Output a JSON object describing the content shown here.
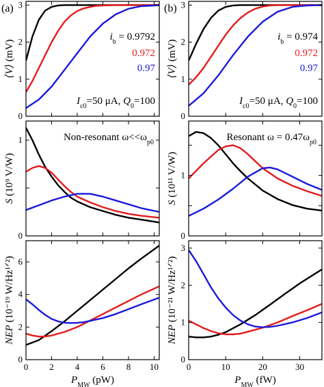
{
  "chart_data": [
    {
      "panel": "(a)",
      "row": 0,
      "col": 0,
      "type": "line",
      "ylabel_main": "⟨V⟩",
      "ylabel_unit": " (mV)",
      "xlim": [
        0,
        10.4
      ],
      "ylim": [
        0,
        3.1
      ],
      "yticks": [
        0,
        1,
        2,
        3
      ],
      "yticklabels": [
        "0",
        "1",
        "2",
        "3"
      ],
      "xticks": [
        0,
        2,
        4,
        6,
        8,
        10
      ],
      "annotations": {
        "ib": {
          "lines": [
            "i_b = 0.9792",
            "0.972",
            "0.97"
          ],
          "colors": [
            "#000000",
            "#e41a1c",
            "#1a1adb"
          ]
        },
        "params": "I_c0=50 μA, Q_0=100"
      },
      "series": [
        {
          "color": "#000000",
          "x": [
            0,
            0.5,
            1,
            1.5,
            2,
            2.5,
            3,
            3.5,
            4,
            5,
            6,
            10.4
          ],
          "y": [
            1.5,
            2.15,
            2.6,
            2.85,
            2.95,
            2.99,
            3.0,
            3.0,
            3.0,
            3.0,
            3.0,
            3.0
          ]
        },
        {
          "color": "#e41a1c",
          "x": [
            0,
            0.5,
            1,
            1.5,
            2,
            2.5,
            3,
            3.5,
            4,
            4.5,
            5,
            5.5,
            6,
            7,
            8,
            10.4
          ],
          "y": [
            0.65,
            0.95,
            1.3,
            1.65,
            2.0,
            2.3,
            2.55,
            2.72,
            2.84,
            2.91,
            2.95,
            2.98,
            2.99,
            3.0,
            3.0,
            3.0
          ]
        },
        {
          "color": "#1a1adb",
          "x": [
            0,
            1,
            2,
            3,
            4,
            5,
            6,
            7,
            8,
            9,
            10,
            10.4
          ],
          "y": [
            0.22,
            0.45,
            0.8,
            1.25,
            1.7,
            2.15,
            2.5,
            2.75,
            2.9,
            2.97,
            2.99,
            3.0
          ]
        }
      ]
    },
    {
      "panel": "(b)",
      "row": 0,
      "col": 1,
      "type": "line",
      "ylabel_main": "⟨V⟩",
      "ylabel_unit": " (mV)",
      "xlim": [
        0,
        36
      ],
      "ylim": [
        0,
        3.1
      ],
      "yticks": [
        0,
        1,
        2,
        3
      ],
      "yticklabels": [
        "0",
        "1",
        "2",
        "3"
      ],
      "xticks": [
        0,
        10,
        20,
        30
      ],
      "annotations": {
        "ib": {
          "lines": [
            "i_b = 0.974",
            "0.972",
            "0.97"
          ],
          "colors": [
            "#000000",
            "#e41a1c",
            "#1a1adb"
          ]
        },
        "params": "I_c0=50 μA, Q_0=100"
      },
      "series": [
        {
          "color": "#000000",
          "x": [
            0,
            2,
            4,
            6,
            8,
            10,
            12,
            14,
            16,
            18,
            20,
            36
          ],
          "y": [
            1.5,
            1.95,
            2.35,
            2.65,
            2.85,
            2.95,
            2.99,
            3.0,
            3.0,
            3.0,
            3.0,
            3.0
          ]
        },
        {
          "color": "#e41a1c",
          "x": [
            0,
            2,
            4,
            6,
            8,
            10,
            12,
            14,
            16,
            18,
            20,
            22,
            24,
            26,
            28,
            36
          ],
          "y": [
            0.85,
            1.05,
            1.3,
            1.6,
            1.9,
            2.2,
            2.45,
            2.65,
            2.8,
            2.9,
            2.96,
            2.99,
            3.0,
            3.0,
            3.0,
            3.0
          ]
        },
        {
          "color": "#1a1adb",
          "x": [
            0,
            4,
            8,
            12,
            16,
            20,
            24,
            28,
            32,
            36
          ],
          "y": [
            0.28,
            0.62,
            1.1,
            1.65,
            2.15,
            2.55,
            2.82,
            2.95,
            2.99,
            3.0
          ]
        }
      ]
    },
    {
      "panel": "",
      "row": 1,
      "col": 0,
      "type": "line",
      "ylabel_main": "S",
      "ylabel_unit": " (10⁹ V/W)",
      "xlim": [
        0,
        10.4
      ],
      "ylim": [
        0,
        1.2
      ],
      "yticks": [
        0,
        0.5,
        1.0
      ],
      "yticklabels": [
        "0",
        "",
        "1"
      ],
      "xticks": [
        0,
        2,
        4,
        6,
        8,
        10
      ],
      "annotations": {
        "title": "Non-resonant ω<<ω_p0"
      },
      "series": [
        {
          "color": "#000000",
          "x": [
            0,
            0.5,
            1,
            1.5,
            2,
            2.5,
            3,
            3.5,
            4,
            5,
            6,
            7,
            8,
            9,
            10.4
          ],
          "y": [
            1.13,
            1.0,
            0.85,
            0.72,
            0.62,
            0.53,
            0.46,
            0.4,
            0.36,
            0.3,
            0.26,
            0.22,
            0.19,
            0.17,
            0.14
          ]
        },
        {
          "color": "#e41a1c",
          "x": [
            0,
            0.5,
            1,
            1.5,
            2,
            2.5,
            3,
            3.5,
            4,
            5,
            6,
            7,
            8,
            9,
            10.4
          ],
          "y": [
            0.67,
            0.71,
            0.73,
            0.71,
            0.66,
            0.59,
            0.52,
            0.46,
            0.41,
            0.35,
            0.3,
            0.26,
            0.23,
            0.21,
            0.19
          ]
        },
        {
          "color": "#1a1adb",
          "x": [
            0,
            1,
            2,
            3,
            4,
            4.5,
            5,
            6,
            7,
            8,
            9,
            10.4
          ],
          "y": [
            0.27,
            0.32,
            0.37,
            0.41,
            0.44,
            0.44,
            0.44,
            0.41,
            0.37,
            0.33,
            0.29,
            0.25
          ]
        }
      ]
    },
    {
      "panel": "",
      "row": 1,
      "col": 1,
      "type": "line",
      "ylabel_main": "S",
      "ylabel_unit": " (10¹¹ V/W)",
      "xlim": [
        0,
        36
      ],
      "ylim": [
        0,
        1.9
      ],
      "yticks": [
        0,
        0.5,
        1.0,
        1.5
      ],
      "yticklabels": [
        "0",
        "",
        "1",
        ""
      ],
      "xticks": [
        0,
        10,
        20,
        30
      ],
      "annotations": {
        "title": "Resonant ω = 0.47ω_p0"
      },
      "series": [
        {
          "color": "#000000",
          "x": [
            0,
            2,
            4,
            6,
            8,
            10,
            12,
            14,
            16,
            20,
            24,
            28,
            32,
            36
          ],
          "y": [
            1.65,
            1.72,
            1.7,
            1.62,
            1.5,
            1.35,
            1.2,
            1.07,
            0.95,
            0.75,
            0.61,
            0.51,
            0.45,
            0.42
          ]
        },
        {
          "color": "#e41a1c",
          "x": [
            0,
            4,
            8,
            10,
            12,
            14,
            16,
            20,
            24,
            28,
            32,
            36
          ],
          "y": [
            0.95,
            1.2,
            1.42,
            1.48,
            1.5,
            1.45,
            1.35,
            1.12,
            0.95,
            0.83,
            0.74,
            0.66
          ]
        },
        {
          "color": "#1a1adb",
          "x": [
            0,
            4,
            8,
            12,
            16,
            20,
            22,
            24,
            28,
            32,
            36
          ],
          "y": [
            0.33,
            0.45,
            0.6,
            0.78,
            0.98,
            1.12,
            1.13,
            1.1,
            0.98,
            0.86,
            0.76
          ]
        }
      ]
    },
    {
      "panel": "",
      "row": 2,
      "col": 0,
      "type": "line",
      "ylabel_main": "NEP",
      "ylabel_unit": " (10⁻¹⁹ W/Hz¹ᐟ²)",
      "xlabel_main": "P",
      "xlabel_sub": "MW",
      "xlabel_unit": " (pW)",
      "xlim": [
        0,
        10.4
      ],
      "ylim": [
        0,
        7.3
      ],
      "yticks": [
        0,
        2,
        4,
        6
      ],
      "yticklabels": [
        "0",
        "2",
        "4",
        "6"
      ],
      "xticks": [
        0,
        2,
        4,
        6,
        8,
        10
      ],
      "xticklabels": [
        "0",
        "2",
        "4",
        "6",
        "8",
        "10"
      ],
      "series": [
        {
          "color": "#000000",
          "x": [
            0,
            1,
            2,
            3,
            4,
            5,
            6,
            7,
            8,
            9,
            10.4
          ],
          "y": [
            0.9,
            1.2,
            1.75,
            2.35,
            3.0,
            3.65,
            4.3,
            4.95,
            5.6,
            6.2,
            7.0
          ]
        },
        {
          "color": "#e41a1c",
          "x": [
            0,
            0.5,
            1,
            1.5,
            2,
            3,
            4,
            5,
            6,
            7,
            8,
            9,
            10.4
          ],
          "y": [
            1.6,
            1.48,
            1.42,
            1.42,
            1.48,
            1.7,
            2.0,
            2.4,
            2.8,
            3.2,
            3.6,
            4.0,
            4.5
          ]
        },
        {
          "color": "#1a1adb",
          "x": [
            0,
            0.5,
            1,
            1.5,
            2,
            2.5,
            3,
            3.5,
            4,
            4.5,
            5,
            6,
            7,
            8,
            9,
            10.4
          ],
          "y": [
            3.7,
            3.4,
            3.05,
            2.75,
            2.5,
            2.35,
            2.27,
            2.25,
            2.26,
            2.3,
            2.38,
            2.55,
            2.8,
            3.1,
            3.4,
            3.8
          ]
        }
      ]
    },
    {
      "panel": "",
      "row": 2,
      "col": 1,
      "type": "line",
      "ylabel_main": "NEP",
      "ylabel_unit": " (10⁻²¹ W/Hz¹ᐟ²)",
      "xlabel_main": "P",
      "xlabel_sub": "MW",
      "xlabel_unit": " (fW)",
      "xlim": [
        0,
        36
      ],
      "ylim": [
        0,
        3.2
      ],
      "yticks": [
        0,
        1,
        2,
        3
      ],
      "yticklabels": [
        "0",
        "1",
        "2",
        "3"
      ],
      "xticks": [
        0,
        10,
        20,
        30
      ],
      "xticklabels": [
        "0",
        "10",
        "20",
        "30"
      ],
      "series": [
        {
          "color": "#000000",
          "x": [
            0,
            2,
            4,
            6,
            8,
            10,
            14,
            18,
            22,
            26,
            30,
            36
          ],
          "y": [
            0.62,
            0.6,
            0.6,
            0.62,
            0.67,
            0.74,
            0.95,
            1.2,
            1.48,
            1.77,
            2.05,
            2.43
          ]
        },
        {
          "color": "#e41a1c",
          "x": [
            0,
            2,
            4,
            6,
            8,
            10,
            12,
            14,
            16,
            20,
            24,
            28,
            32,
            36
          ],
          "y": [
            1.05,
            0.95,
            0.85,
            0.77,
            0.71,
            0.68,
            0.68,
            0.7,
            0.75,
            0.86,
            1.0,
            1.17,
            1.33,
            1.5
          ]
        },
        {
          "color": "#1a1adb",
          "x": [
            0,
            2,
            4,
            6,
            8,
            10,
            12,
            14,
            16,
            18,
            20,
            22,
            24,
            28,
            32,
            36
          ],
          "y": [
            2.95,
            2.65,
            2.3,
            1.95,
            1.65,
            1.4,
            1.2,
            1.05,
            0.95,
            0.89,
            0.87,
            0.88,
            0.91,
            1.0,
            1.12,
            1.27
          ]
        }
      ]
    }
  ]
}
